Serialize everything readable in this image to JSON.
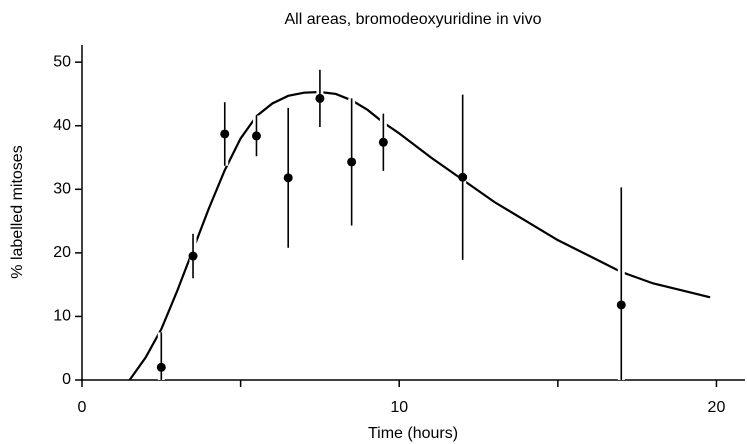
{
  "chart_data": {
    "type": "scatter",
    "title": "All areas, bromodeoxyuridine in vivo",
    "xlabel": "Time (hours)",
    "ylabel": "% labelled mitoses",
    "xlim": [
      0,
      20.9
    ],
    "ylim": [
      0,
      52.7
    ],
    "xticks": [
      0,
      10,
      20
    ],
    "xminor_ticks": [
      5,
      15
    ],
    "yticks": [
      0,
      10,
      20,
      30,
      40,
      50
    ],
    "series": [
      {
        "type": "line",
        "color": "#000000",
        "x": [
          1.5,
          2,
          2.5,
          3,
          3.5,
          4,
          4.5,
          5,
          5.5,
          6,
          6.5,
          7,
          7.5,
          8,
          8.5,
          9,
          9.5,
          10,
          11,
          12,
          13,
          14,
          15,
          16,
          17,
          18,
          19,
          19.8
        ],
        "values": [
          0,
          3.5,
          8,
          14,
          20.5,
          27,
          33,
          38,
          41.5,
          43.5,
          44.7,
          45.2,
          45.3,
          45,
          44,
          42.5,
          40.5,
          38.8,
          35,
          31.5,
          28,
          25,
          22,
          19.5,
          17,
          15.2,
          14,
          13
        ]
      },
      {
        "type": "scatter",
        "color": "#000000",
        "x": [
          2.5,
          3.5,
          4.5,
          5.5,
          6.5,
          7.5,
          8.5,
          9.5,
          12,
          17
        ],
        "values": [
          2,
          19.5,
          38.7,
          38.4,
          31.8,
          44.3,
          34.3,
          37.4,
          31.9,
          11.8
        ],
        "errors": [
          5.5,
          3.5,
          5,
          3.2,
          11,
          4.5,
          10,
          4.5,
          13,
          18.5
        ]
      }
    ]
  }
}
